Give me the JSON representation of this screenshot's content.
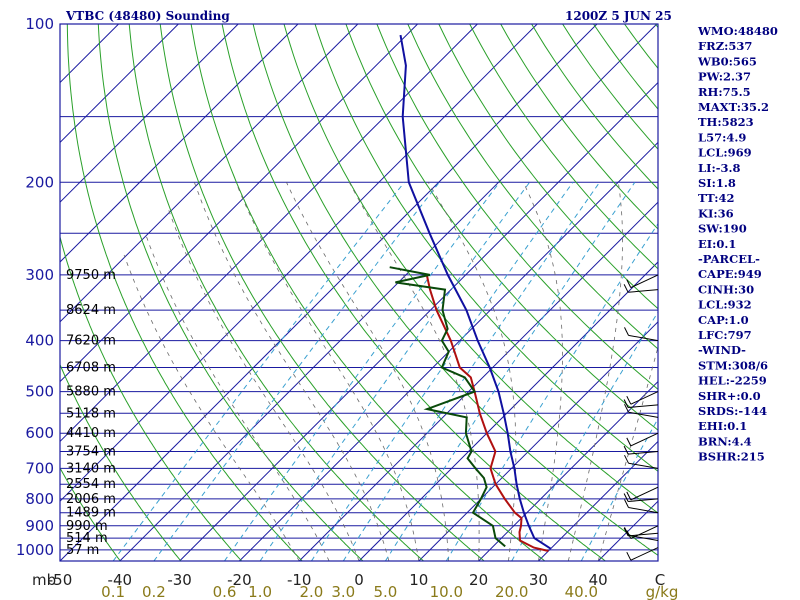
{
  "title": {
    "left": "VTBC (48480) Sounding",
    "right": "1200Z  5 JUN 25"
  },
  "chart_data": {
    "type": "skew-t",
    "pressure_axis": {
      "ticks": [
        100,
        200,
        300,
        400,
        500,
        600,
        700,
        800,
        900,
        1000
      ],
      "unit": "mb",
      "range": [
        100,
        1050
      ]
    },
    "temperature_axis": {
      "ticks": [
        -50,
        -40,
        -30,
        -20,
        -10,
        0,
        10,
        20,
        30,
        40
      ],
      "unit": "C",
      "range_at_base": [
        -50,
        50
      ]
    },
    "mixing_ratio_axis": {
      "ticks": [
        0.1,
        0.2,
        0.6,
        1.0,
        2.0,
        3.0,
        5.0,
        10.0,
        20.0,
        40.0
      ],
      "unit": "g/kg"
    },
    "height_labels": [
      {
        "p": 300,
        "label": "9750 m"
      },
      {
        "p": 350,
        "label": "8624 m"
      },
      {
        "p": 400,
        "label": "7620 m"
      },
      {
        "p": 450,
        "label": "6708 m"
      },
      {
        "p": 500,
        "label": "5880 m"
      },
      {
        "p": 550,
        "label": "5118 m"
      },
      {
        "p": 600,
        "label": "4410 m"
      },
      {
        "p": 650,
        "label": "3754 m"
      },
      {
        "p": 700,
        "label": "3140 m"
      },
      {
        "p": 750,
        "label": "2554 m"
      },
      {
        "p": 800,
        "label": "2006 m"
      },
      {
        "p": 850,
        "label": "1489 m"
      },
      {
        "p": 900,
        "label": "990 m"
      },
      {
        "p": 950,
        "label": "514 m"
      },
      {
        "p": 1000,
        "label": "57 m"
      }
    ],
    "series": [
      {
        "color": "#b01010",
        "points": [
          {
            "p": 1005,
            "t": 30.0
          },
          {
            "p": 990,
            "t": 27.0
          },
          {
            "p": 960,
            "t": 23.5
          },
          {
            "p": 925,
            "t": 22.0
          },
          {
            "p": 900,
            "t": 21.2
          },
          {
            "p": 870,
            "t": 20.0
          },
          {
            "p": 850,
            "t": 18.0
          },
          {
            "p": 800,
            "t": 14.0
          },
          {
            "p": 750,
            "t": 10.0
          },
          {
            "p": 700,
            "t": 6.5
          },
          {
            "p": 650,
            "t": 4.5
          },
          {
            "p": 600,
            "t": 0.0
          },
          {
            "p": 550,
            "t": -4.5
          },
          {
            "p": 500,
            "t": -9.0
          },
          {
            "p": 470,
            "t": -12.0
          },
          {
            "p": 450,
            "t": -15.5
          },
          {
            "p": 400,
            "t": -21.5
          },
          {
            "p": 350,
            "t": -29.0
          },
          {
            "p": 320,
            "t": -33.5
          },
          {
            "p": 300,
            "t": -36.5
          }
        ]
      },
      {
        "color": "#0a4a0a",
        "points": [
          {
            "p": 985,
            "t": 22.0
          },
          {
            "p": 950,
            "t": 19.0
          },
          {
            "p": 900,
            "t": 16.5
          },
          {
            "p": 850,
            "t": 11.0
          },
          {
            "p": 800,
            "t": 10.0
          },
          {
            "p": 760,
            "t": 9.0
          },
          {
            "p": 730,
            "t": 7.0
          },
          {
            "p": 700,
            "t": 4.0
          },
          {
            "p": 670,
            "t": 1.0
          },
          {
            "p": 650,
            "t": 0.5
          },
          {
            "p": 600,
            "t": -3.5
          },
          {
            "p": 560,
            "t": -6.0
          },
          {
            "p": 540,
            "t": -14.0
          },
          {
            "p": 500,
            "t": -9.0
          },
          {
            "p": 470,
            "t": -13.0
          },
          {
            "p": 450,
            "t": -18.5
          },
          {
            "p": 420,
            "t": -20.0
          },
          {
            "p": 400,
            "t": -23.0
          },
          {
            "p": 380,
            "t": -24.0
          },
          {
            "p": 350,
            "t": -28.0
          },
          {
            "p": 320,
            "t": -31.0
          },
          {
            "p": 310,
            "t": -40.5
          },
          {
            "p": 300,
            "t": -36.0
          },
          {
            "p": 290,
            "t": -44.0
          }
        ]
      },
      {
        "color": "#1010a0",
        "points": [
          {
            "p": 995,
            "t": 30.0
          },
          {
            "p": 950,
            "t": 25.5
          },
          {
            "p": 900,
            "t": 22.5
          },
          {
            "p": 850,
            "t": 19.5
          },
          {
            "p": 800,
            "t": 16.5
          },
          {
            "p": 750,
            "t": 13.5
          },
          {
            "p": 700,
            "t": 10.5
          },
          {
            "p": 650,
            "t": 7.0
          },
          {
            "p": 600,
            "t": 3.5
          },
          {
            "p": 550,
            "t": -0.5
          },
          {
            "p": 500,
            "t": -5.0
          },
          {
            "p": 450,
            "t": -10.5
          },
          {
            "p": 400,
            "t": -17.0
          },
          {
            "p": 350,
            "t": -24.0
          },
          {
            "p": 300,
            "t": -33.0
          },
          {
            "p": 250,
            "t": -43.0
          },
          {
            "p": 200,
            "t": -55.0
          },
          {
            "p": 150,
            "t": -67.0
          },
          {
            "p": 120,
            "t": -75.0
          },
          {
            "p": 105,
            "t": -81.0
          }
        ]
      }
    ],
    "wind_barbs": [
      {
        "p": 990
      },
      {
        "p": 960
      },
      {
        "p": 930
      },
      {
        "p": 900
      },
      {
        "p": 850
      },
      {
        "p": 800
      },
      {
        "p": 760
      },
      {
        "p": 700
      },
      {
        "p": 650
      },
      {
        "p": 600
      },
      {
        "p": 560
      },
      {
        "p": 530
      },
      {
        "p": 500
      },
      {
        "p": 400
      },
      {
        "p": 320
      },
      {
        "p": 300
      }
    ],
    "grid": true
  },
  "indices": [
    "WMO:48480",
    "FRZ:537",
    "WB0:565",
    "PW:2.37",
    "RH:75.5",
    "MAXT:35.2",
    "TH:5823",
    "L57:4.9",
    "LCL:969",
    "LI:-3.8",
    "SI:1.8",
    "TT:42",
    "KI:36",
    "SW:190",
    "EI:0.1",
    "-PARCEL-",
    "CAPE:949",
    "CINH:30",
    "LCL:932",
    "CAP:1.0",
    "LFC:797",
    "-WIND-",
    "STM:308/6",
    "HEL:-2259",
    "SHR+:0.0",
    "SRDS:-144",
    "EHI:0.1",
    "BRN:4.4",
    "BSHR:215"
  ],
  "colors": {
    "isobar": "#1a1aa0",
    "isotherm": "#1a1aa0",
    "dry_adiabat": "#2aa02a",
    "moist_adiabat": "#6a6a6a",
    "mixing_ratio": "#3aa0d0"
  }
}
